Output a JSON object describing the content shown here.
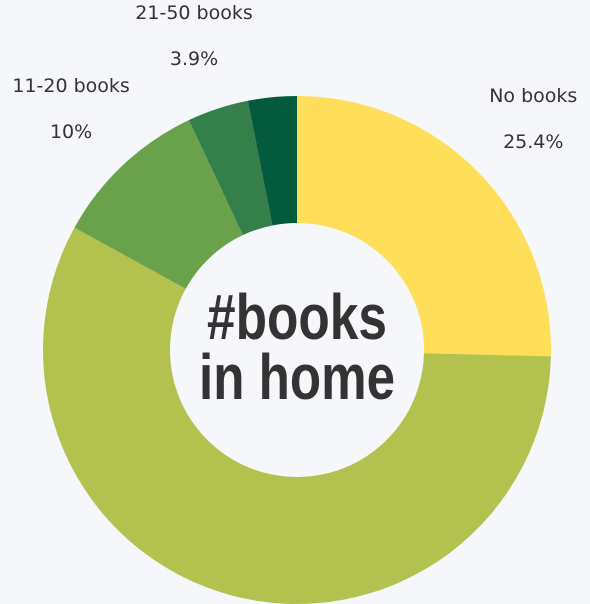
{
  "chart_data": {
    "type": "donut",
    "center_text": [
      "#books",
      "in home"
    ],
    "categories": [
      "No books",
      null,
      "11-20 books",
      "21-50 books",
      null
    ],
    "values": [
      25.4,
      57.6,
      10,
      3.9,
      3.1
    ],
    "value_labels": [
      "25.4%",
      null,
      "10%",
      "3.9%",
      null
    ],
    "colors": [
      "#ffdf5a",
      "#b3c24f",
      "#6aa24c",
      "#347f4a",
      "#035a3d"
    ]
  }
}
